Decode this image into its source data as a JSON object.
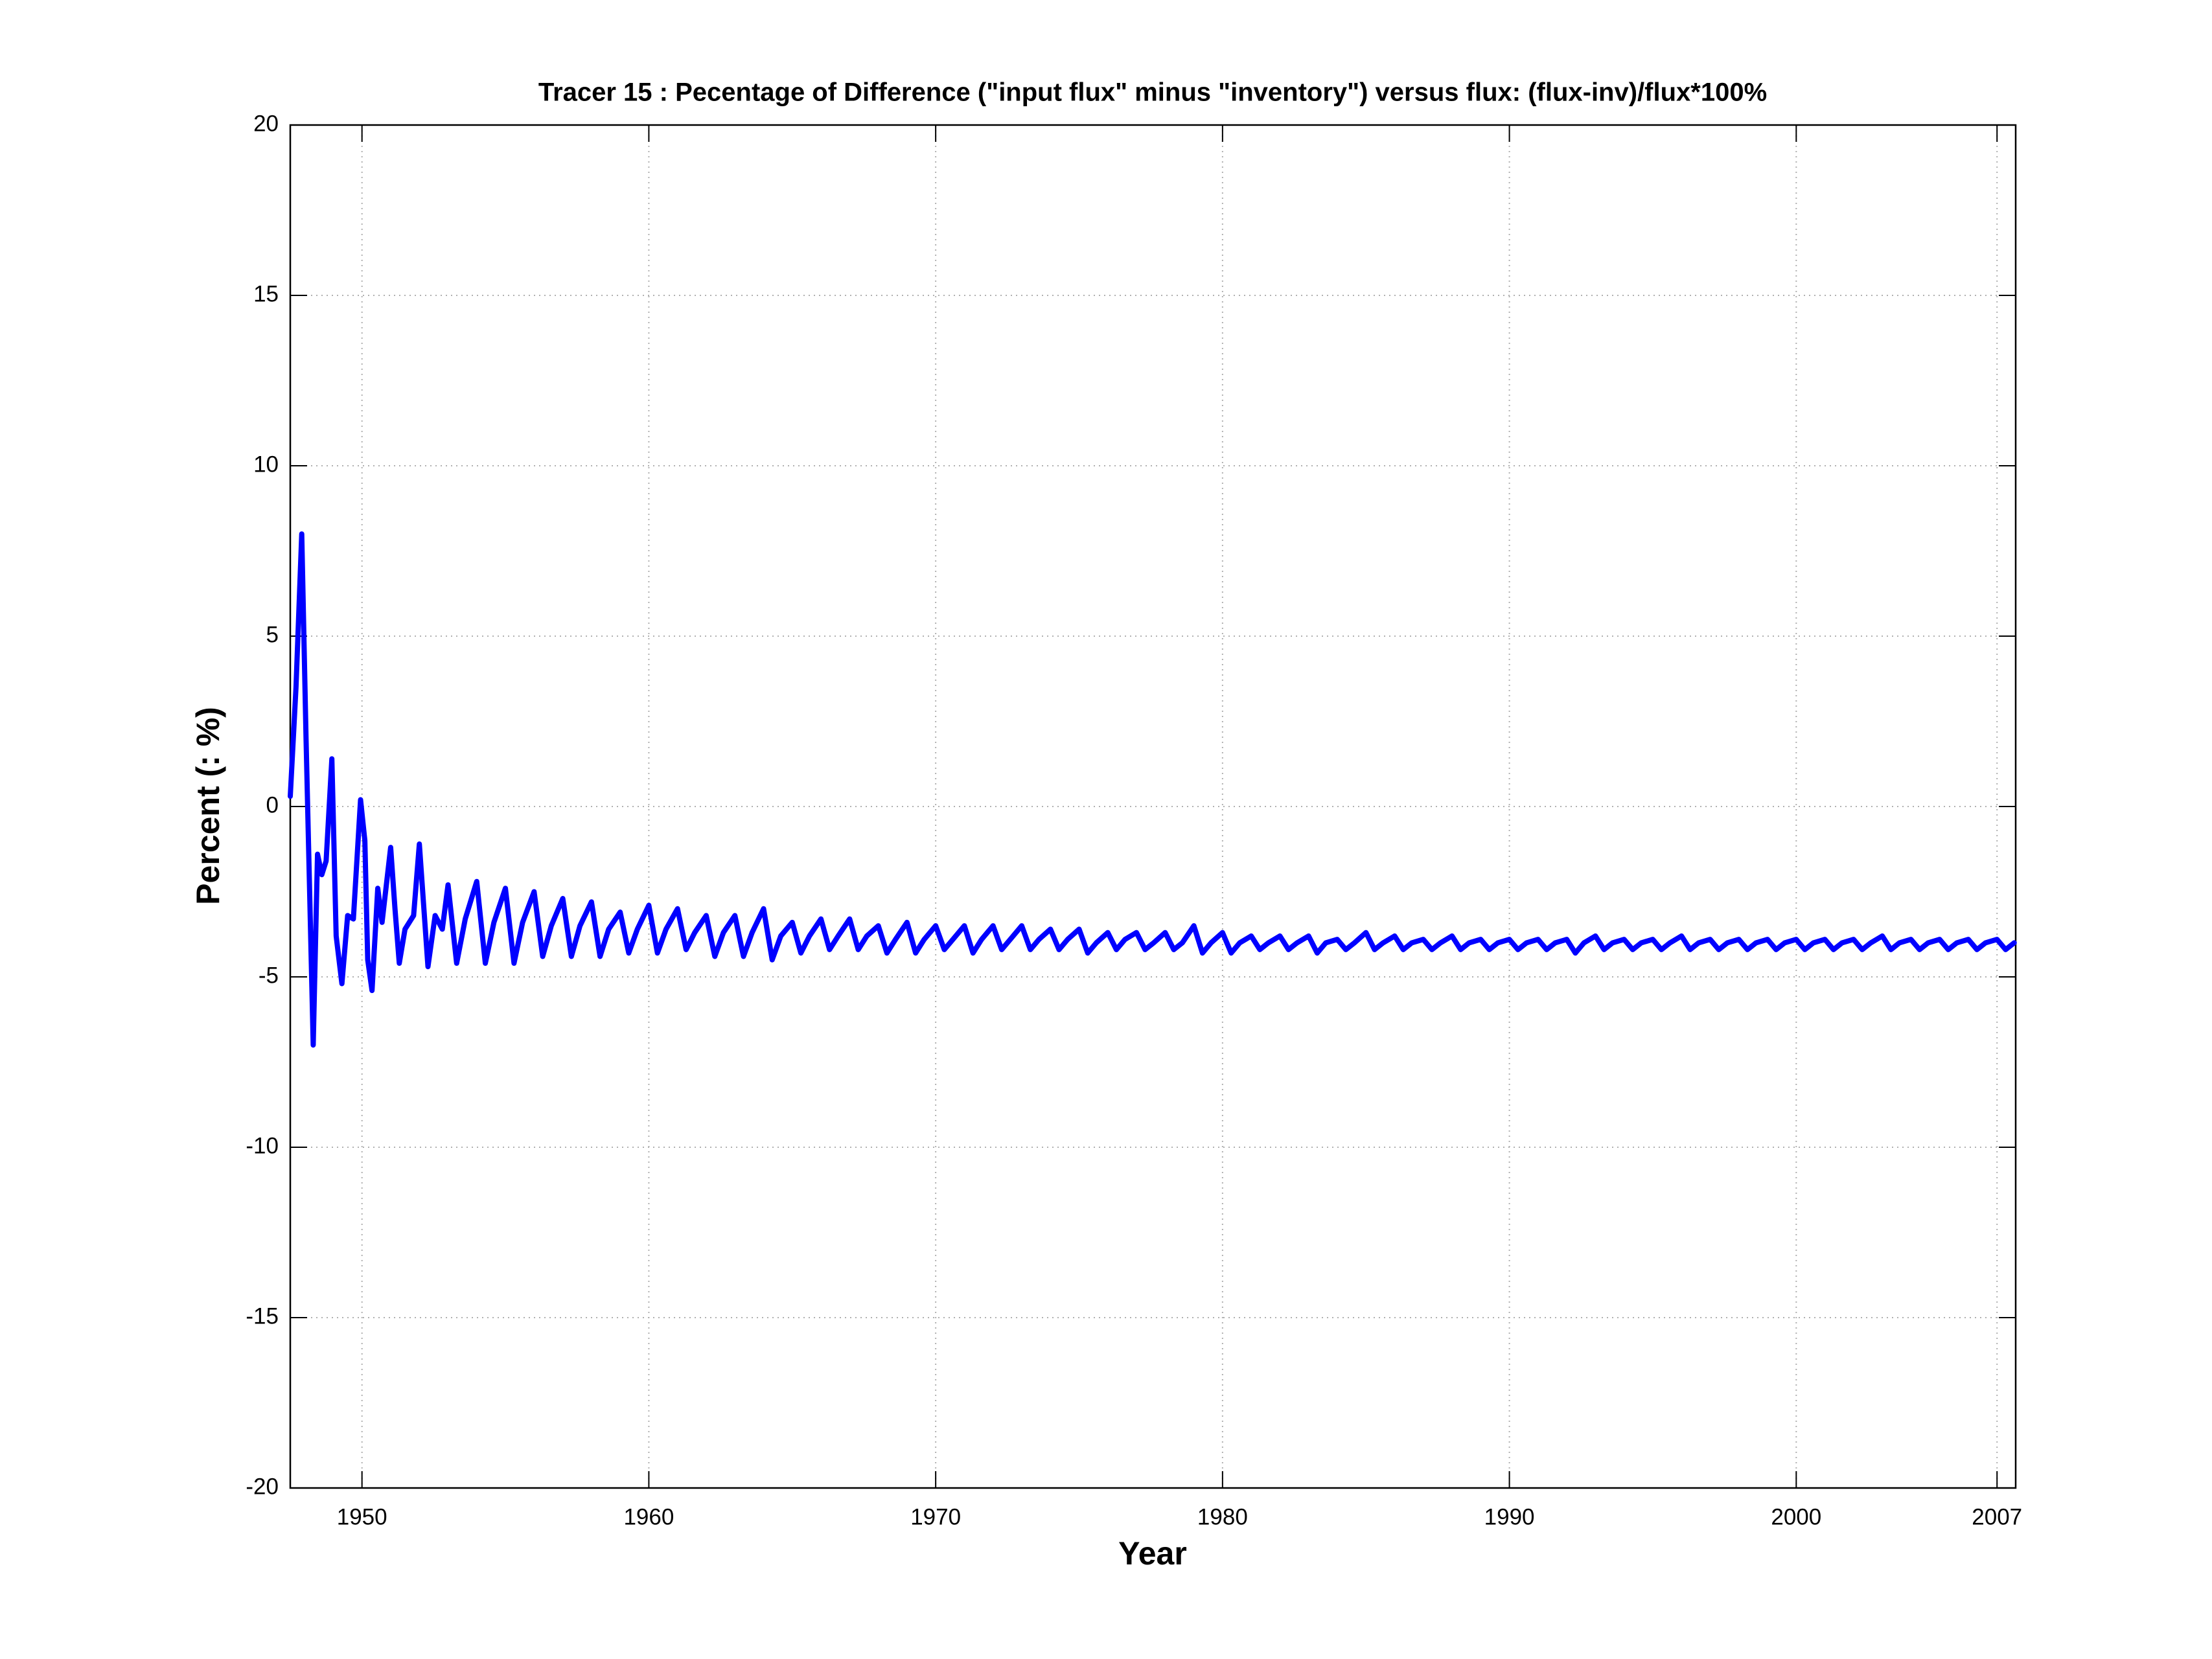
{
  "chart_data": {
    "type": "line",
    "title": "Tracer 15 : Pecentage of Difference (\"input flux\" minus \"inventory\") versus flux: (flux-inv)/flux*100%",
    "x_label": "Year",
    "y_label": "Percent (: %)",
    "color": "#0000ff",
    "grid": true,
    "xlim": [
      1947.5,
      2007.65
    ],
    "ylim": [
      -20,
      20
    ],
    "xticks": [
      1950,
      1960,
      1970,
      1980,
      1990,
      2000,
      2007
    ],
    "yticks": [
      -20,
      -15,
      -10,
      -5,
      0,
      5,
      10,
      15,
      20
    ],
    "x": [
      1947.5,
      1947.7,
      1947.9,
      1948.05,
      1948.3,
      1948.45,
      1948.6,
      1948.75,
      1948.95,
      1949.1,
      1949.3,
      1949.5,
      1949.7,
      1949.95,
      1950.1,
      1950.2,
      1950.35,
      1950.55,
      1950.7,
      1951.0,
      1951.15,
      1951.3,
      1951.5,
      1951.8,
      1952.0,
      1952.3,
      1952.55,
      1952.8,
      1953,
      1953.3,
      1953.6,
      1954,
      1954.3,
      1954.6,
      1955,
      1955.3,
      1955.6,
      1956,
      1956.3,
      1956.6,
      1957,
      1957.3,
      1957.6,
      1958,
      1958.3,
      1958.6,
      1959,
      1959.3,
      1959.6,
      1960,
      1960.3,
      1960.6,
      1961,
      1961.3,
      1961.6,
      1962,
      1962.3,
      1962.6,
      1963,
      1963.3,
      1963.6,
      1964,
      1964.3,
      1964.6,
      1965,
      1965.3,
      1965.6,
      1966,
      1966.3,
      1966.6,
      1967,
      1967.3,
      1967.6,
      1968,
      1968.3,
      1968.6,
      1969,
      1969.3,
      1969.6,
      1970,
      1970.3,
      1970.6,
      1971,
      1971.3,
      1971.6,
      1972,
      1972.3,
      1972.6,
      1973,
      1973.3,
      1973.6,
      1974,
      1974.3,
      1974.6,
      1975,
      1975.3,
      1975.6,
      1976,
      1976.3,
      1976.6,
      1977,
      1977.3,
      1977.6,
      1978,
      1978.3,
      1978.6,
      1979,
      1979.3,
      1979.6,
      1980,
      1980.3,
      1980.6,
      1981,
      1981.3,
      1981.6,
      1982,
      1982.3,
      1982.6,
      1983,
      1983.3,
      1983.6,
      1984,
      1984.3,
      1984.6,
      1985,
      1985.3,
      1985.6,
      1986,
      1986.3,
      1986.6,
      1987,
      1987.3,
      1987.6,
      1988,
      1988.3,
      1988.6,
      1989,
      1989.3,
      1989.6,
      1990,
      1990.3,
      1990.6,
      1991,
      1991.3,
      1991.6,
      1992,
      1992.3,
      1992.6,
      1993,
      1993.3,
      1993.6,
      1994,
      1994.3,
      1994.6,
      1995,
      1995.3,
      1995.6,
      1996,
      1996.3,
      1996.6,
      1997,
      1997.3,
      1997.6,
      1998,
      1998.3,
      1998.6,
      1999,
      1999.3,
      1999.6,
      2000,
      2000.3,
      2000.6,
      2001,
      2001.3,
      2001.6,
      2002,
      2002.3,
      2002.6,
      2003,
      2003.3,
      2003.6,
      2004,
      2004.3,
      2004.6,
      2005,
      2005.3,
      2005.6,
      2006,
      2006.3,
      2006.6,
      2007,
      2007.3,
      2007.6
    ],
    "values": [
      0.3,
      3.5,
      8.0,
      2.0,
      -7.0,
      -1.4,
      -2.0,
      -1.6,
      1.4,
      -3.8,
      -5.2,
      -3.2,
      -3.3,
      0.2,
      -1.0,
      -4.5,
      -5.4,
      -2.4,
      -3.4,
      -1.2,
      -3.0,
      -4.6,
      -3.6,
      -3.2,
      -1.1,
      -4.7,
      -3.2,
      -3.6,
      -2.3,
      -4.6,
      -3.3,
      -2.2,
      -4.6,
      -3.4,
      -2.4,
      -4.6,
      -3.4,
      -2.5,
      -4.4,
      -3.5,
      -2.7,
      -4.4,
      -3.5,
      -2.8,
      -4.4,
      -3.6,
      -3.1,
      -4.3,
      -3.6,
      -2.9,
      -4.3,
      -3.6,
      -3.0,
      -4.2,
      -3.7,
      -3.2,
      -4.4,
      -3.7,
      -3.2,
      -4.4,
      -3.7,
      -3.0,
      -4.5,
      -3.8,
      -3.4,
      -4.3,
      -3.8,
      -3.3,
      -4.2,
      -3.8,
      -3.3,
      -4.2,
      -3.8,
      -3.5,
      -4.3,
      -3.9,
      -3.4,
      -4.3,
      -3.9,
      -3.5,
      -4.2,
      -3.9,
      -3.5,
      -4.3,
      -3.9,
      -3.5,
      -4.2,
      -3.9,
      -3.5,
      -4.2,
      -3.9,
      -3.6,
      -4.2,
      -3.9,
      -3.6,
      -4.3,
      -4.0,
      -3.7,
      -4.2,
      -3.9,
      -3.7,
      -4.2,
      -4.0,
      -3.7,
      -4.2,
      -4.0,
      -3.5,
      -4.3,
      -4.0,
      -3.7,
      -4.3,
      -4.0,
      -3.8,
      -4.2,
      -4.0,
      -3.8,
      -4.2,
      -4.0,
      -3.8,
      -4.3,
      -4.0,
      -3.9,
      -4.2,
      -4.0,
      -3.7,
      -4.2,
      -4.0,
      -3.8,
      -4.2,
      -4.0,
      -3.9,
      -4.2,
      -4.0,
      -3.8,
      -4.2,
      -4.0,
      -3.9,
      -4.2,
      -4.0,
      -3.9,
      -4.2,
      -4.0,
      -3.9,
      -4.2,
      -4.0,
      -3.9,
      -4.3,
      -4.0,
      -3.8,
      -4.2,
      -4.0,
      -3.9,
      -4.2,
      -4.0,
      -3.9,
      -4.2,
      -4.0,
      -3.8,
      -4.2,
      -4.0,
      -3.9,
      -4.2,
      -4.0,
      -3.9,
      -4.2,
      -4.0,
      -3.9,
      -4.2,
      -4.0,
      -3.9,
      -4.2,
      -4.0,
      -3.9,
      -4.2,
      -4.0,
      -3.9,
      -4.2,
      -4.0,
      -3.8,
      -4.2,
      -4.0,
      -3.9,
      -4.2,
      -4.0,
      -3.9,
      -4.2,
      -4.0,
      -3.9,
      -4.2,
      -4.0,
      -3.9,
      -4.2,
      -4.0
    ]
  }
}
